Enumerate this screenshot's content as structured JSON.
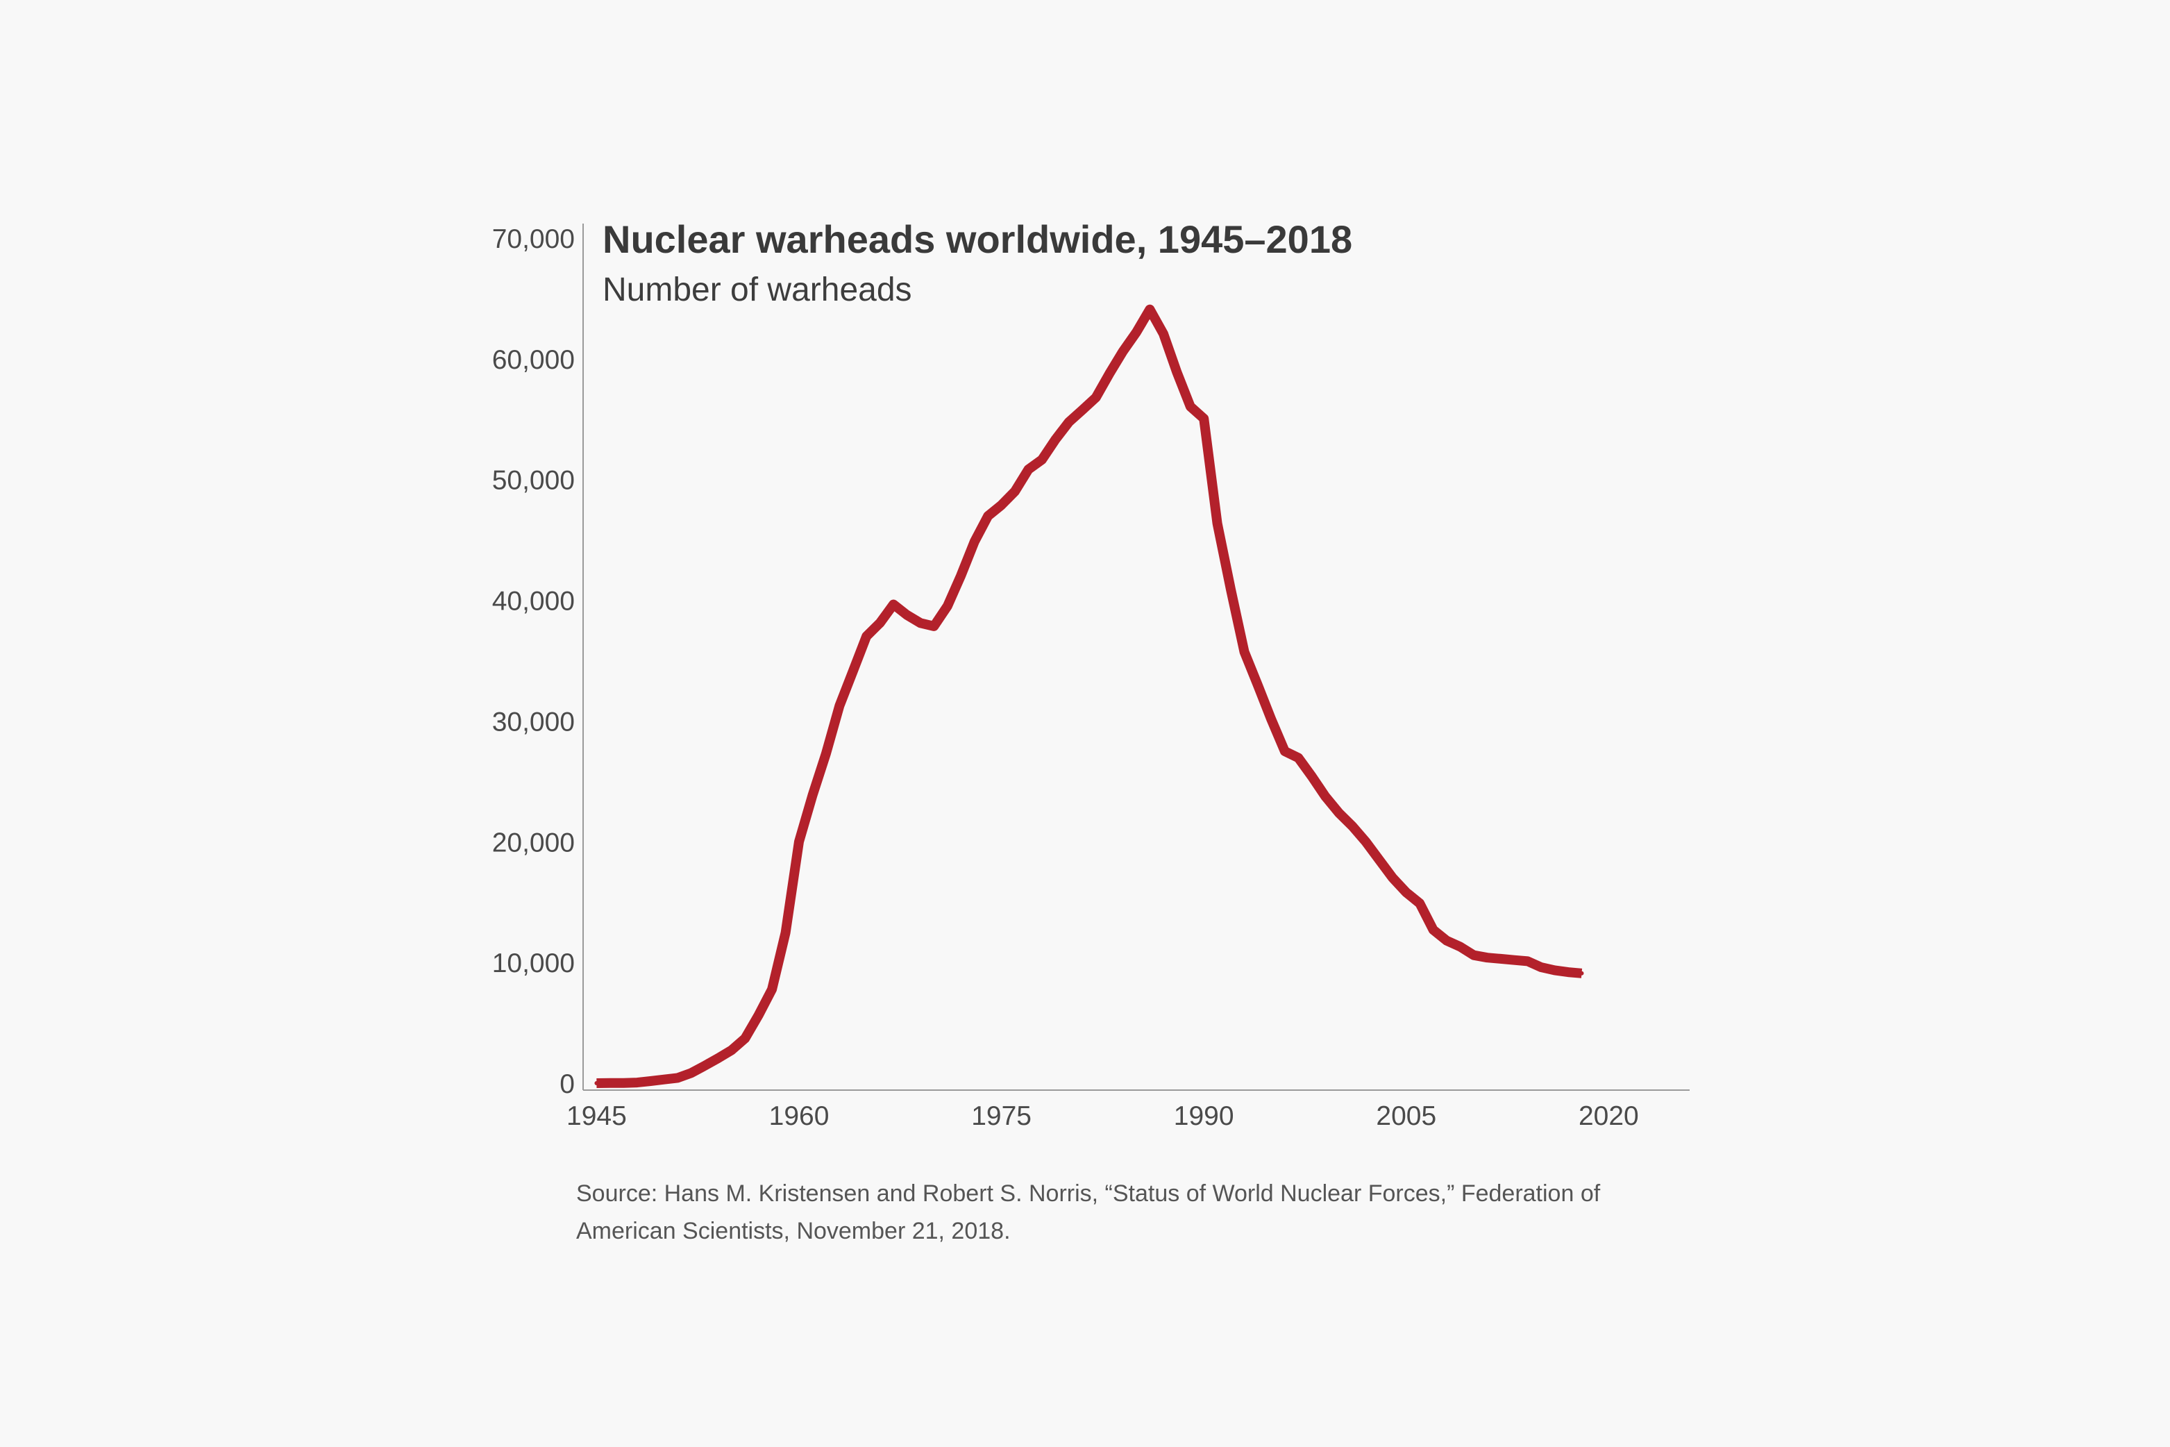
{
  "chart_data": {
    "type": "line",
    "title": "Nuclear warheads worldwide, 1945–2018",
    "subtitle": "Number of warheads",
    "xlabel": "",
    "ylabel": "",
    "xlim": [
      1944,
      2026
    ],
    "ylim": [
      0,
      70000
    ],
    "x_ticks": [
      1945,
      1960,
      1975,
      1990,
      2005,
      2020
    ],
    "y_ticks": [
      0,
      10000,
      20000,
      30000,
      40000,
      50000,
      60000,
      70000
    ],
    "y_tick_labels": [
      "0",
      "10,000",
      "20,000",
      "30,000",
      "40,000",
      "50,000",
      "60,000",
      "70,000"
    ],
    "grid": false,
    "line_color": "#b3212b",
    "series": [
      {
        "x": [
          1945,
          1946,
          1947,
          1948,
          1949,
          1950,
          1951,
          1952,
          1953,
          1954,
          1955,
          1956,
          1957,
          1958,
          1959,
          1960,
          1961,
          1962,
          1963,
          1964,
          1965,
          1966,
          1967,
          1968,
          1969,
          1970,
          1971,
          1972,
          1973,
          1974,
          1975,
          1976,
          1977,
          1978,
          1979,
          1980,
          1981,
          1982,
          1983,
          1984,
          1985,
          1986,
          1987,
          1988,
          1989,
          1990,
          1991,
          1992,
          1993,
          1994,
          1995,
          1996,
          1997,
          1998,
          1999,
          2000,
          2001,
          2002,
          2003,
          2004,
          2005,
          2006,
          2007,
          2008,
          2009,
          2010,
          2011,
          2012,
          2013,
          2014,
          2015,
          2016,
          2017,
          2018
        ],
        "values": [
          2,
          9,
          13,
          50,
          170,
          304,
          438,
          842,
          1436,
          2063,
          2732,
          3708,
          5632,
          7779,
          12460,
          20006,
          23854,
          27297,
          31255,
          34134,
          37019,
          38127,
          39661,
          38787,
          38120,
          37853,
          39525,
          42049,
          44847,
          46980,
          47892,
          49025,
          50841,
          51646,
          53321,
          54769,
          55771,
          56801,
          58768,
          60618,
          62208,
          64099,
          62085,
          58907,
          56051,
          55054,
          46364,
          40872,
          35736,
          32960,
          30121,
          27498,
          26953,
          25417,
          23763,
          22400,
          21300,
          20000,
          18500,
          17000,
          15800,
          14900,
          12700,
          11800,
          11300,
          10600,
          10400,
          10300,
          10200,
          10100,
          9600,
          9350,
          9200,
          9100
        ]
      }
    ]
  },
  "source": "Source: Hans M. Kristensen and Robert S. Norris, “Status of World Nuclear Forces,” Federation of American Scientists, November 21, 2018."
}
